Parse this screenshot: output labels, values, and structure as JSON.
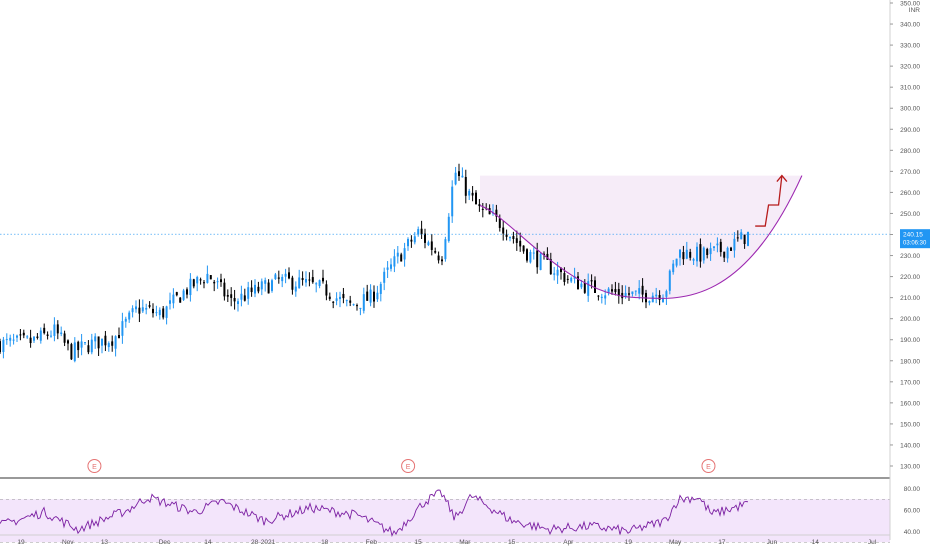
{
  "colors": {
    "background": "#ffffff",
    "up_candle": "#2196f3",
    "down_candle": "#000000",
    "axis_text": "#555555",
    "price_line": "#2196f3",
    "cup_curve": "#9c27b0",
    "cup_fill": "#f3e5f5",
    "breakout_arrow": "#b71c1c",
    "rsi_line": "#7b1fa2",
    "rsi_band": "#f3e5fb",
    "earnings_marker": "#e57373"
  },
  "currency_label": "INR",
  "earnings_marker_label": "E",
  "earnings_marker_dates": [
    "2020-11-10",
    "2021-02-12",
    "2021-05-13"
  ],
  "price_label": {
    "value": "240.15",
    "countdown": "03:06:30"
  },
  "rsi": {
    "ticks": [
      "80.00",
      "60.00",
      "40.00"
    ],
    "upper_band": 70,
    "lower_band": 30
  },
  "chart_data": {
    "type": "candlestick",
    "title": "",
    "xlabel": "",
    "ylabel": "",
    "ylim": [
      125,
      350
    ],
    "y_ticks": [
      "350.00",
      "340.00",
      "330.00",
      "320.00",
      "310.00",
      "300.00",
      "290.00",
      "280.00",
      "270.00",
      "260.00",
      "250.00",
      "240.00",
      "230.00",
      "220.00",
      "210.00",
      "200.00",
      "190.00",
      "180.00",
      "170.00",
      "160.00",
      "150.00",
      "140.00",
      "130.00"
    ],
    "x_ticks": [
      {
        "label": "19",
        "date": "2020-10-19"
      },
      {
        "label": "Nov",
        "date": "2020-11-02"
      },
      {
        "label": "13",
        "date": "2020-11-13"
      },
      {
        "label": "Dec",
        "date": "2020-12-01"
      },
      {
        "label": "14",
        "date": "2020-12-14"
      },
      {
        "label": "28",
        "date": "2020-12-28"
      },
      {
        "label": "2021",
        "date": "2021-01-01"
      },
      {
        "label": "18",
        "date": "2021-01-18"
      },
      {
        "label": "Feb",
        "date": "2021-02-01"
      },
      {
        "label": "15",
        "date": "2021-02-15"
      },
      {
        "label": "Mar",
        "date": "2021-03-01"
      },
      {
        "label": "15",
        "date": "2021-03-15"
      },
      {
        "label": "Apr",
        "date": "2021-04-01"
      },
      {
        "label": "19",
        "date": "2021-04-19"
      },
      {
        "label": "May",
        "date": "2021-05-03"
      },
      {
        "label": "17",
        "date": "2021-05-17"
      },
      {
        "label": "Jun",
        "date": "2021-06-01"
      },
      {
        "label": "14",
        "date": "2021-06-14"
      },
      {
        "label": "Jul",
        "date": "2021-07-01"
      }
    ],
    "close_series": [
      {
        "date": "2020-10-12",
        "close": 188
      },
      {
        "date": "2020-10-22",
        "close": 189
      },
      {
        "date": "2020-10-29",
        "close": 194
      },
      {
        "date": "2020-11-03",
        "close": 184
      },
      {
        "date": "2020-11-09",
        "close": 188
      },
      {
        "date": "2020-11-16",
        "close": 191
      },
      {
        "date": "2020-11-23",
        "close": 205
      },
      {
        "date": "2020-11-30",
        "close": 202
      },
      {
        "date": "2020-12-07",
        "close": 213
      },
      {
        "date": "2020-12-14",
        "close": 221
      },
      {
        "date": "2020-12-21",
        "close": 208
      },
      {
        "date": "2020-12-28",
        "close": 213
      },
      {
        "date": "2021-01-04",
        "close": 218
      },
      {
        "date": "2021-01-11",
        "close": 217
      },
      {
        "date": "2021-01-18",
        "close": 214
      },
      {
        "date": "2021-01-25",
        "close": 206
      },
      {
        "date": "2021-02-01",
        "close": 210
      },
      {
        "date": "2021-02-08",
        "close": 227
      },
      {
        "date": "2021-02-15",
        "close": 241
      },
      {
        "date": "2021-02-22",
        "close": 229
      },
      {
        "date": "2021-02-26",
        "close": 270
      },
      {
        "date": "2021-03-05",
        "close": 252
      },
      {
        "date": "2021-03-12",
        "close": 245
      },
      {
        "date": "2021-03-19",
        "close": 232
      },
      {
        "date": "2021-03-26",
        "close": 225
      },
      {
        "date": "2021-04-02",
        "close": 218
      },
      {
        "date": "2021-04-09",
        "close": 214
      },
      {
        "date": "2021-04-16",
        "close": 212
      },
      {
        "date": "2021-04-23",
        "close": 211
      },
      {
        "date": "2021-04-30",
        "close": 213
      },
      {
        "date": "2021-05-04",
        "close": 232
      },
      {
        "date": "2021-05-11",
        "close": 230
      },
      {
        "date": "2021-05-18",
        "close": 233
      },
      {
        "date": "2021-05-25",
        "close": 240
      }
    ],
    "rsi_series": [
      {
        "date": "2020-10-12",
        "value": 45
      },
      {
        "date": "2020-10-26",
        "value": 58
      },
      {
        "date": "2020-11-05",
        "value": 42
      },
      {
        "date": "2020-11-20",
        "value": 60
      },
      {
        "date": "2020-11-26",
        "value": 72
      },
      {
        "date": "2020-12-10",
        "value": 58
      },
      {
        "date": "2020-12-18",
        "value": 68
      },
      {
        "date": "2020-12-31",
        "value": 50
      },
      {
        "date": "2021-01-14",
        "value": 62
      },
      {
        "date": "2021-01-28",
        "value": 55
      },
      {
        "date": "2021-02-08",
        "value": 38
      },
      {
        "date": "2021-02-17",
        "value": 68
      },
      {
        "date": "2021-02-22",
        "value": 76
      },
      {
        "date": "2021-02-26",
        "value": 52
      },
      {
        "date": "2021-03-03",
        "value": 73
      },
      {
        "date": "2021-03-15",
        "value": 50
      },
      {
        "date": "2021-03-26",
        "value": 42
      },
      {
        "date": "2021-04-08",
        "value": 45
      },
      {
        "date": "2021-04-19",
        "value": 40
      },
      {
        "date": "2021-04-30",
        "value": 50
      },
      {
        "date": "2021-05-04",
        "value": 70
      },
      {
        "date": "2021-05-10",
        "value": 72
      },
      {
        "date": "2021-05-14",
        "value": 56
      },
      {
        "date": "2021-05-25",
        "value": 66
      }
    ],
    "cup_pattern": {
      "rim_price": 268,
      "bottom_price": 210,
      "start_date": "2021-03-01",
      "bottom_date": "2021-04-22",
      "end_date": "2021-06-10"
    },
    "breakout_path": [
      {
        "date": "2021-05-27",
        "price": 244
      },
      {
        "date": "2021-05-30",
        "price": 244
      },
      {
        "date": "2021-05-31",
        "price": 254
      },
      {
        "date": "2021-06-03",
        "price": 254
      },
      {
        "date": "2021-06-04",
        "price": 268
      }
    ]
  }
}
